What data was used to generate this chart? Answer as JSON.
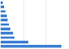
{
  "values": [
    27.0,
    12.1,
    6.1,
    5.4,
    4.3,
    3.8,
    3.1,
    2.7,
    2.1,
    1.6,
    0.8
  ],
  "bar_color": "#3a7fd4",
  "background_color": "#ffffff",
  "grid_color": "#d0d0d0",
  "xlim": [
    0,
    30
  ],
  "bar_height": 0.55,
  "figsize": [
    1.0,
    0.71
  ],
  "dpi": 100
}
